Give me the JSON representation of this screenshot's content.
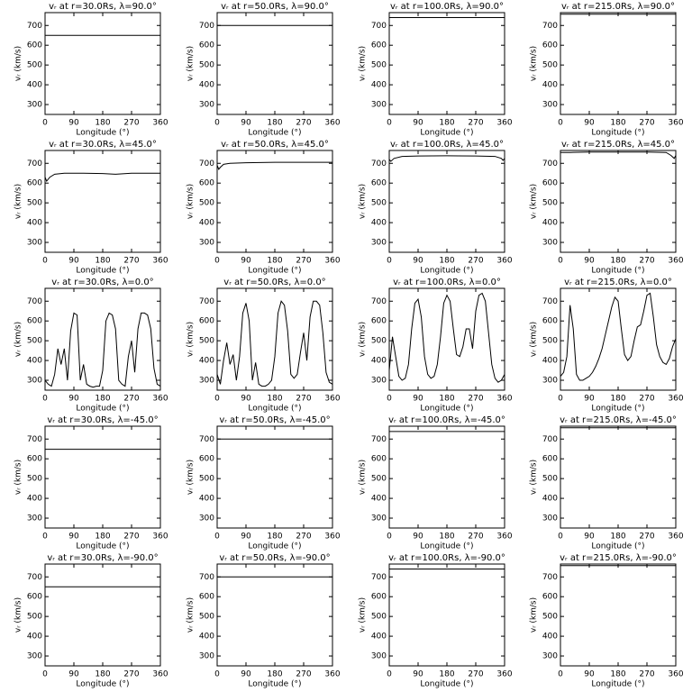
{
  "chart_data": [
    {
      "type": "line",
      "title": "vᵣ at r=30.0Rs, λ=90.0°",
      "xlabel": "Longitude (°)",
      "ylabel": "vᵣ (km/s)",
      "x": [
        0,
        360
      ],
      "values": [
        650,
        650
      ],
      "xlim": [
        0,
        360
      ],
      "ylim": [
        250,
        765
      ],
      "xticks": [
        0,
        90,
        180,
        270,
        360
      ],
      "yticks": [
        300,
        400,
        500,
        600,
        700
      ],
      "color": "#000000"
    },
    {
      "type": "line",
      "title": "vᵣ at r=50.0Rs, λ=90.0°",
      "xlabel": "Longitude (°)",
      "ylabel": "vᵣ (km/s)",
      "x": [
        0,
        360
      ],
      "values": [
        700,
        700
      ],
      "xlim": [
        0,
        360
      ],
      "ylim": [
        250,
        765
      ],
      "xticks": [
        0,
        90,
        180,
        270,
        360
      ],
      "yticks": [
        300,
        400,
        500,
        600,
        700
      ],
      "color": "#000000"
    },
    {
      "type": "line",
      "title": "vᵣ at r=100.0Rs, λ=90.0°",
      "xlabel": "Longitude (°)",
      "ylabel": "vᵣ (km/s)",
      "x": [
        0,
        360
      ],
      "values": [
        740,
        740
      ],
      "xlim": [
        0,
        360
      ],
      "ylim": [
        250,
        765
      ],
      "xticks": [
        0,
        90,
        180,
        270,
        360
      ],
      "yticks": [
        300,
        400,
        500,
        600,
        700
      ],
      "color": "#000000"
    },
    {
      "type": "line",
      "title": "vᵣ at r=215.0Rs, λ=90.0°",
      "xlabel": "Longitude (°)",
      "ylabel": "vᵣ (km/s)",
      "x": [
        0,
        360
      ],
      "values": [
        757,
        757
      ],
      "xlim": [
        0,
        360
      ],
      "ylim": [
        250,
        765
      ],
      "xticks": [
        0,
        90,
        180,
        270,
        360
      ],
      "yticks": [
        300,
        400,
        500,
        600,
        700
      ],
      "color": "#000000"
    },
    {
      "type": "line",
      "title": "vᵣ at r=30.0Rs, λ=45.0°",
      "xlabel": "Longitude (°)",
      "ylabel": "vᵣ (km/s)",
      "x": [
        0,
        5,
        15,
        30,
        60,
        120,
        180,
        220,
        270,
        360
      ],
      "values": [
        630,
        610,
        630,
        645,
        650,
        650,
        648,
        645,
        650,
        650
      ],
      "xlim": [
        0,
        360
      ],
      "ylim": [
        250,
        765
      ],
      "xticks": [
        0,
        90,
        180,
        270,
        360
      ],
      "yticks": [
        300,
        400,
        500,
        600,
        700
      ],
      "color": "#000000"
    },
    {
      "type": "line",
      "title": "vᵣ at r=50.0Rs, λ=45.0°",
      "xlabel": "Longitude (°)",
      "ylabel": "vᵣ (km/s)",
      "x": [
        0,
        5,
        10,
        20,
        40,
        90,
        180,
        270,
        360
      ],
      "values": [
        690,
        670,
        680,
        695,
        700,
        703,
        705,
        705,
        705
      ],
      "xlim": [
        0,
        360
      ],
      "ylim": [
        250,
        765
      ],
      "xticks": [
        0,
        90,
        180,
        270,
        360
      ],
      "yticks": [
        300,
        400,
        500,
        600,
        700
      ],
      "color": "#000000"
    },
    {
      "type": "line",
      "title": "vᵣ at r=100.0Rs, λ=45.0°",
      "xlabel": "Longitude (°)",
      "ylabel": "vᵣ (km/s)",
      "x": [
        0,
        5,
        15,
        40,
        90,
        180,
        270,
        330,
        350,
        355,
        360
      ],
      "values": [
        720,
        710,
        725,
        735,
        737,
        738,
        737,
        735,
        725,
        715,
        725
      ],
      "xlim": [
        0,
        360
      ],
      "ylim": [
        250,
        765
      ],
      "xticks": [
        0,
        90,
        180,
        270,
        360
      ],
      "yticks": [
        300,
        400,
        500,
        600,
        700
      ],
      "color": "#000000"
    },
    {
      "type": "line",
      "title": "vᵣ at r=215.0Rs, λ=45.0°",
      "xlabel": "Longitude (°)",
      "ylabel": "vᵣ (km/s)",
      "x": [
        0,
        30,
        90,
        180,
        270,
        330,
        345,
        355,
        360
      ],
      "values": [
        755,
        755,
        757,
        757,
        757,
        755,
        740,
        725,
        740
      ],
      "xlim": [
        0,
        360
      ],
      "ylim": [
        250,
        765
      ],
      "xticks": [
        0,
        90,
        180,
        270,
        360
      ],
      "yticks": [
        300,
        400,
        500,
        600,
        700
      ],
      "color": "#000000"
    },
    {
      "type": "line",
      "title": "vᵣ at r=30.0Rs, λ=0.0°",
      "xlabel": "Longitude (°)",
      "ylabel": "vᵣ (km/s)",
      "x": [
        0,
        10,
        20,
        30,
        40,
        50,
        60,
        70,
        80,
        90,
        100,
        110,
        120,
        130,
        140,
        150,
        160,
        170,
        180,
        190,
        200,
        210,
        220,
        230,
        240,
        250,
        260,
        270,
        280,
        290,
        300,
        310,
        320,
        330,
        340,
        350,
        360
      ],
      "values": [
        300,
        280,
        270,
        330,
        460,
        380,
        460,
        300,
        550,
        640,
        630,
        300,
        380,
        280,
        270,
        265,
        270,
        270,
        350,
        600,
        640,
        630,
        560,
        300,
        280,
        270,
        420,
        500,
        340,
        560,
        640,
        640,
        630,
        560,
        360,
        280,
        270
      ],
      "xlim": [
        0,
        360
      ],
      "ylim": [
        250,
        765
      ],
      "xticks": [
        0,
        90,
        180,
        270,
        360
      ],
      "yticks": [
        300,
        400,
        500,
        600,
        700
      ],
      "color": "#000000"
    },
    {
      "type": "line",
      "title": "vᵣ at r=50.0Rs, λ=0.0°",
      "xlabel": "Longitude (°)",
      "ylabel": "vᵣ (km/s)",
      "x": [
        0,
        10,
        20,
        30,
        40,
        50,
        60,
        70,
        80,
        90,
        100,
        110,
        120,
        130,
        140,
        150,
        160,
        170,
        180,
        190,
        200,
        210,
        220,
        230,
        240,
        250,
        260,
        270,
        280,
        290,
        300,
        310,
        320,
        330,
        340,
        350,
        360
      ],
      "values": [
        330,
        280,
        400,
        490,
        380,
        430,
        300,
        420,
        640,
        690,
        600,
        300,
        390,
        280,
        270,
        270,
        280,
        300,
        420,
        640,
        700,
        680,
        550,
        330,
        310,
        330,
        440,
        540,
        400,
        620,
        700,
        700,
        680,
        540,
        340,
        290,
        280
      ],
      "xlim": [
        0,
        360
      ],
      "ylim": [
        250,
        765
      ],
      "xticks": [
        0,
        90,
        180,
        270,
        360
      ],
      "yticks": [
        300,
        400,
        500,
        600,
        700
      ],
      "color": "#000000"
    },
    {
      "type": "line",
      "title": "vᵣ at r=100.0Rs, λ=0.0°",
      "xlabel": "Longitude (°)",
      "ylabel": "vᵣ (km/s)",
      "x": [
        0,
        10,
        20,
        30,
        40,
        50,
        60,
        70,
        80,
        90,
        100,
        110,
        120,
        130,
        140,
        150,
        160,
        170,
        180,
        190,
        200,
        210,
        220,
        230,
        240,
        250,
        260,
        270,
        280,
        290,
        300,
        310,
        320,
        330,
        340,
        350,
        360
      ],
      "values": [
        350,
        520,
        420,
        320,
        300,
        310,
        380,
        560,
        690,
        710,
        620,
        420,
        330,
        310,
        320,
        380,
        520,
        690,
        730,
        700,
        560,
        430,
        420,
        470,
        560,
        560,
        460,
        650,
        730,
        740,
        700,
        540,
        380,
        310,
        290,
        300,
        330
      ],
      "xlim": [
        0,
        360
      ],
      "ylim": [
        250,
        765
      ],
      "xticks": [
        0,
        90,
        180,
        270,
        360
      ],
      "yticks": [
        300,
        400,
        500,
        600,
        700
      ],
      "color": "#000000"
    },
    {
      "type": "line",
      "title": "vᵣ at r=215.0Rs, λ=0.0°",
      "xlabel": "Longitude (°)",
      "ylabel": "vᵣ (km/s)",
      "x": [
        0,
        10,
        20,
        30,
        40,
        50,
        60,
        70,
        80,
        90,
        100,
        110,
        120,
        130,
        140,
        150,
        160,
        170,
        180,
        190,
        200,
        210,
        220,
        230,
        240,
        250,
        260,
        270,
        280,
        290,
        300,
        310,
        320,
        330,
        340,
        350,
        360
      ],
      "values": [
        320,
        340,
        420,
        680,
        560,
        330,
        300,
        300,
        310,
        320,
        340,
        370,
        410,
        460,
        530,
        600,
        670,
        720,
        700,
        560,
        430,
        400,
        420,
        500,
        570,
        580,
        650,
        730,
        740,
        620,
        480,
        420,
        390,
        380,
        410,
        470,
        510
      ],
      "xlim": [
        0,
        360
      ],
      "ylim": [
        250,
        765
      ],
      "xticks": [
        0,
        90,
        180,
        270,
        360
      ],
      "yticks": [
        300,
        400,
        500,
        600,
        700
      ],
      "color": "#000000"
    },
    {
      "type": "line",
      "title": "vᵣ at r=30.0Rs, λ=-45.0°",
      "xlabel": "Longitude (°)",
      "ylabel": "vᵣ (km/s)",
      "x": [
        0,
        360
      ],
      "values": [
        648,
        648
      ],
      "xlim": [
        0,
        360
      ],
      "ylim": [
        250,
        765
      ],
      "xticks": [
        0,
        90,
        180,
        270,
        360
      ],
      "yticks": [
        300,
        400,
        500,
        600,
        700
      ],
      "color": "#000000"
    },
    {
      "type": "line",
      "title": "vᵣ at r=50.0Rs, λ=-45.0°",
      "xlabel": "Longitude (°)",
      "ylabel": "vᵣ (km/s)",
      "x": [
        0,
        360
      ],
      "values": [
        700,
        700
      ],
      "xlim": [
        0,
        360
      ],
      "ylim": [
        250,
        765
      ],
      "xticks": [
        0,
        90,
        180,
        270,
        360
      ],
      "yticks": [
        300,
        400,
        500,
        600,
        700
      ],
      "color": "#000000"
    },
    {
      "type": "line",
      "title": "vᵣ at r=100.0Rs, λ=-45.0°",
      "xlabel": "Longitude (°)",
      "ylabel": "vᵣ (km/s)",
      "x": [
        0,
        360
      ],
      "values": [
        738,
        738
      ],
      "xlim": [
        0,
        360
      ],
      "ylim": [
        250,
        765
      ],
      "xticks": [
        0,
        90,
        180,
        270,
        360
      ],
      "yticks": [
        300,
        400,
        500,
        600,
        700
      ],
      "color": "#000000"
    },
    {
      "type": "line",
      "title": "vᵣ at r=215.0Rs, λ=-45.0°",
      "xlabel": "Longitude (°)",
      "ylabel": "vᵣ (km/s)",
      "x": [
        0,
        360
      ],
      "values": [
        757,
        757
      ],
      "xlim": [
        0,
        360
      ],
      "ylim": [
        250,
        765
      ],
      "xticks": [
        0,
        90,
        180,
        270,
        360
      ],
      "yticks": [
        300,
        400,
        500,
        600,
        700
      ],
      "color": "#000000"
    },
    {
      "type": "line",
      "title": "vᵣ at r=30.0Rs, λ=-90.0°",
      "xlabel": "Longitude (°)",
      "ylabel": "vᵣ (km/s)",
      "x": [
        0,
        360
      ],
      "values": [
        650,
        650
      ],
      "xlim": [
        0,
        360
      ],
      "ylim": [
        250,
        765
      ],
      "xticks": [
        0,
        90,
        180,
        270,
        360
      ],
      "yticks": [
        300,
        400,
        500,
        600,
        700
      ],
      "color": "#000000"
    },
    {
      "type": "line",
      "title": "vᵣ at r=50.0Rs, λ=-90.0°",
      "xlabel": "Longitude (°)",
      "ylabel": "vᵣ (km/s)",
      "x": [
        0,
        360
      ],
      "values": [
        700,
        700
      ],
      "xlim": [
        0,
        360
      ],
      "ylim": [
        250,
        765
      ],
      "xticks": [
        0,
        90,
        180,
        270,
        360
      ],
      "yticks": [
        300,
        400,
        500,
        600,
        700
      ],
      "color": "#000000"
    },
    {
      "type": "line",
      "title": "vᵣ at r=100.0Rs, λ=-90.0°",
      "xlabel": "Longitude (°)",
      "ylabel": "vᵣ (km/s)",
      "x": [
        0,
        360
      ],
      "values": [
        740,
        740
      ],
      "xlim": [
        0,
        360
      ],
      "ylim": [
        250,
        765
      ],
      "xticks": [
        0,
        90,
        180,
        270,
        360
      ],
      "yticks": [
        300,
        400,
        500,
        600,
        700
      ],
      "color": "#000000"
    },
    {
      "type": "line",
      "title": "vᵣ at r=215.0Rs, λ=-90.0°",
      "xlabel": "Longitude (°)",
      "ylabel": "vᵣ (km/s)",
      "x": [
        0,
        360
      ],
      "values": [
        757,
        757
      ],
      "xlim": [
        0,
        360
      ],
      "ylim": [
        250,
        765
      ],
      "xticks": [
        0,
        90,
        180,
        270,
        360
      ],
      "yticks": [
        300,
        400,
        500,
        600,
        700
      ],
      "color": "#000000"
    }
  ]
}
